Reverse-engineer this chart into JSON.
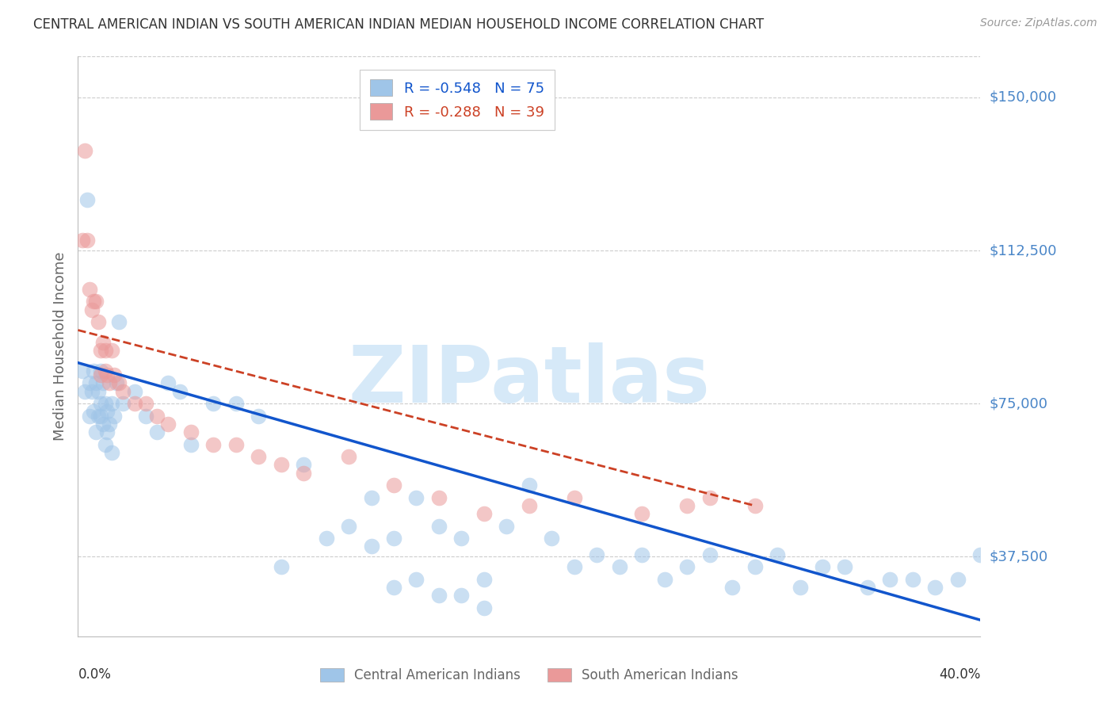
{
  "title": "CENTRAL AMERICAN INDIAN VS SOUTH AMERICAN INDIAN MEDIAN HOUSEHOLD INCOME CORRELATION CHART",
  "source": "Source: ZipAtlas.com",
  "ylabel": "Median Household Income",
  "ytick_positions": [
    37500,
    75000,
    112500,
    150000
  ],
  "ytick_labels": [
    "$37,500",
    "$75,000",
    "$112,500",
    "$150,000"
  ],
  "xtick_positions": [
    0,
    10,
    20,
    30,
    40
  ],
  "xtick_labels": [
    "0.0%",
    "",
    "",
    "",
    "40.0%"
  ],
  "xlim": [
    0.0,
    40.0
  ],
  "ylim": [
    18000,
    160000
  ],
  "legend_blue_r": "-0.548",
  "legend_blue_n": "75",
  "legend_pink_r": "-0.288",
  "legend_pink_n": "39",
  "legend_blue_label": "Central American Indians",
  "legend_pink_label": "South American Indians",
  "blue_color": "#9fc5e8",
  "pink_color": "#ea9999",
  "line_blue_color": "#1155cc",
  "line_pink_color": "#cc4125",
  "watermark_color": "#d6e9f8",
  "title_color": "#333333",
  "ytick_color": "#4a86c8",
  "grid_color": "#cccccc",
  "blue_x": [
    0.2,
    0.3,
    0.4,
    0.5,
    0.5,
    0.6,
    0.7,
    0.7,
    0.8,
    0.8,
    0.9,
    0.9,
    1.0,
    1.0,
    1.0,
    1.1,
    1.1,
    1.2,
    1.2,
    1.3,
    1.3,
    1.4,
    1.5,
    1.5,
    1.6,
    1.7,
    1.8,
    2.0,
    2.5,
    3.0,
    3.5,
    4.0,
    4.5,
    5.0,
    6.0,
    7.0,
    8.0,
    9.0,
    10.0,
    11.0,
    12.0,
    13.0,
    14.0,
    15.0,
    16.0,
    17.0,
    18.0,
    19.0,
    20.0,
    21.0,
    22.0,
    23.0,
    24.0,
    25.0,
    26.0,
    27.0,
    28.0,
    29.0,
    30.0,
    31.0,
    32.0,
    33.0,
    34.0,
    35.0,
    36.0,
    37.0,
    38.0,
    39.0,
    40.0,
    13.0,
    14.0,
    15.0,
    16.0,
    17.0,
    18.0
  ],
  "blue_y": [
    83000,
    78000,
    125000,
    72000,
    80000,
    78000,
    83000,
    73000,
    80000,
    68000,
    72000,
    78000,
    83000,
    75000,
    72000,
    80000,
    70000,
    75000,
    65000,
    73000,
    68000,
    70000,
    75000,
    63000,
    72000,
    80000,
    95000,
    75000,
    78000,
    72000,
    68000,
    80000,
    78000,
    65000,
    75000,
    75000,
    72000,
    35000,
    60000,
    42000,
    45000,
    52000,
    42000,
    52000,
    45000,
    42000,
    32000,
    45000,
    55000,
    42000,
    35000,
    38000,
    35000,
    38000,
    32000,
    35000,
    38000,
    30000,
    35000,
    38000,
    30000,
    35000,
    35000,
    30000,
    32000,
    32000,
    30000,
    32000,
    38000,
    40000,
    30000,
    32000,
    28000,
    28000,
    25000
  ],
  "pink_x": [
    0.2,
    0.3,
    0.4,
    0.5,
    0.6,
    0.7,
    0.8,
    0.9,
    1.0,
    1.0,
    1.1,
    1.2,
    1.2,
    1.3,
    1.4,
    1.5,
    1.6,
    1.8,
    2.0,
    2.5,
    3.0,
    3.5,
    4.0,
    5.0,
    6.0,
    7.0,
    8.0,
    9.0,
    10.0,
    12.0,
    14.0,
    16.0,
    18.0,
    20.0,
    22.0,
    25.0,
    27.0,
    28.0,
    30.0
  ],
  "pink_y": [
    115000,
    137000,
    115000,
    103000,
    98000,
    100000,
    100000,
    95000,
    88000,
    82000,
    90000,
    88000,
    83000,
    82000,
    80000,
    88000,
    82000,
    80000,
    78000,
    75000,
    75000,
    72000,
    70000,
    68000,
    65000,
    65000,
    62000,
    60000,
    58000,
    62000,
    55000,
    52000,
    48000,
    50000,
    52000,
    48000,
    50000,
    52000,
    50000
  ]
}
